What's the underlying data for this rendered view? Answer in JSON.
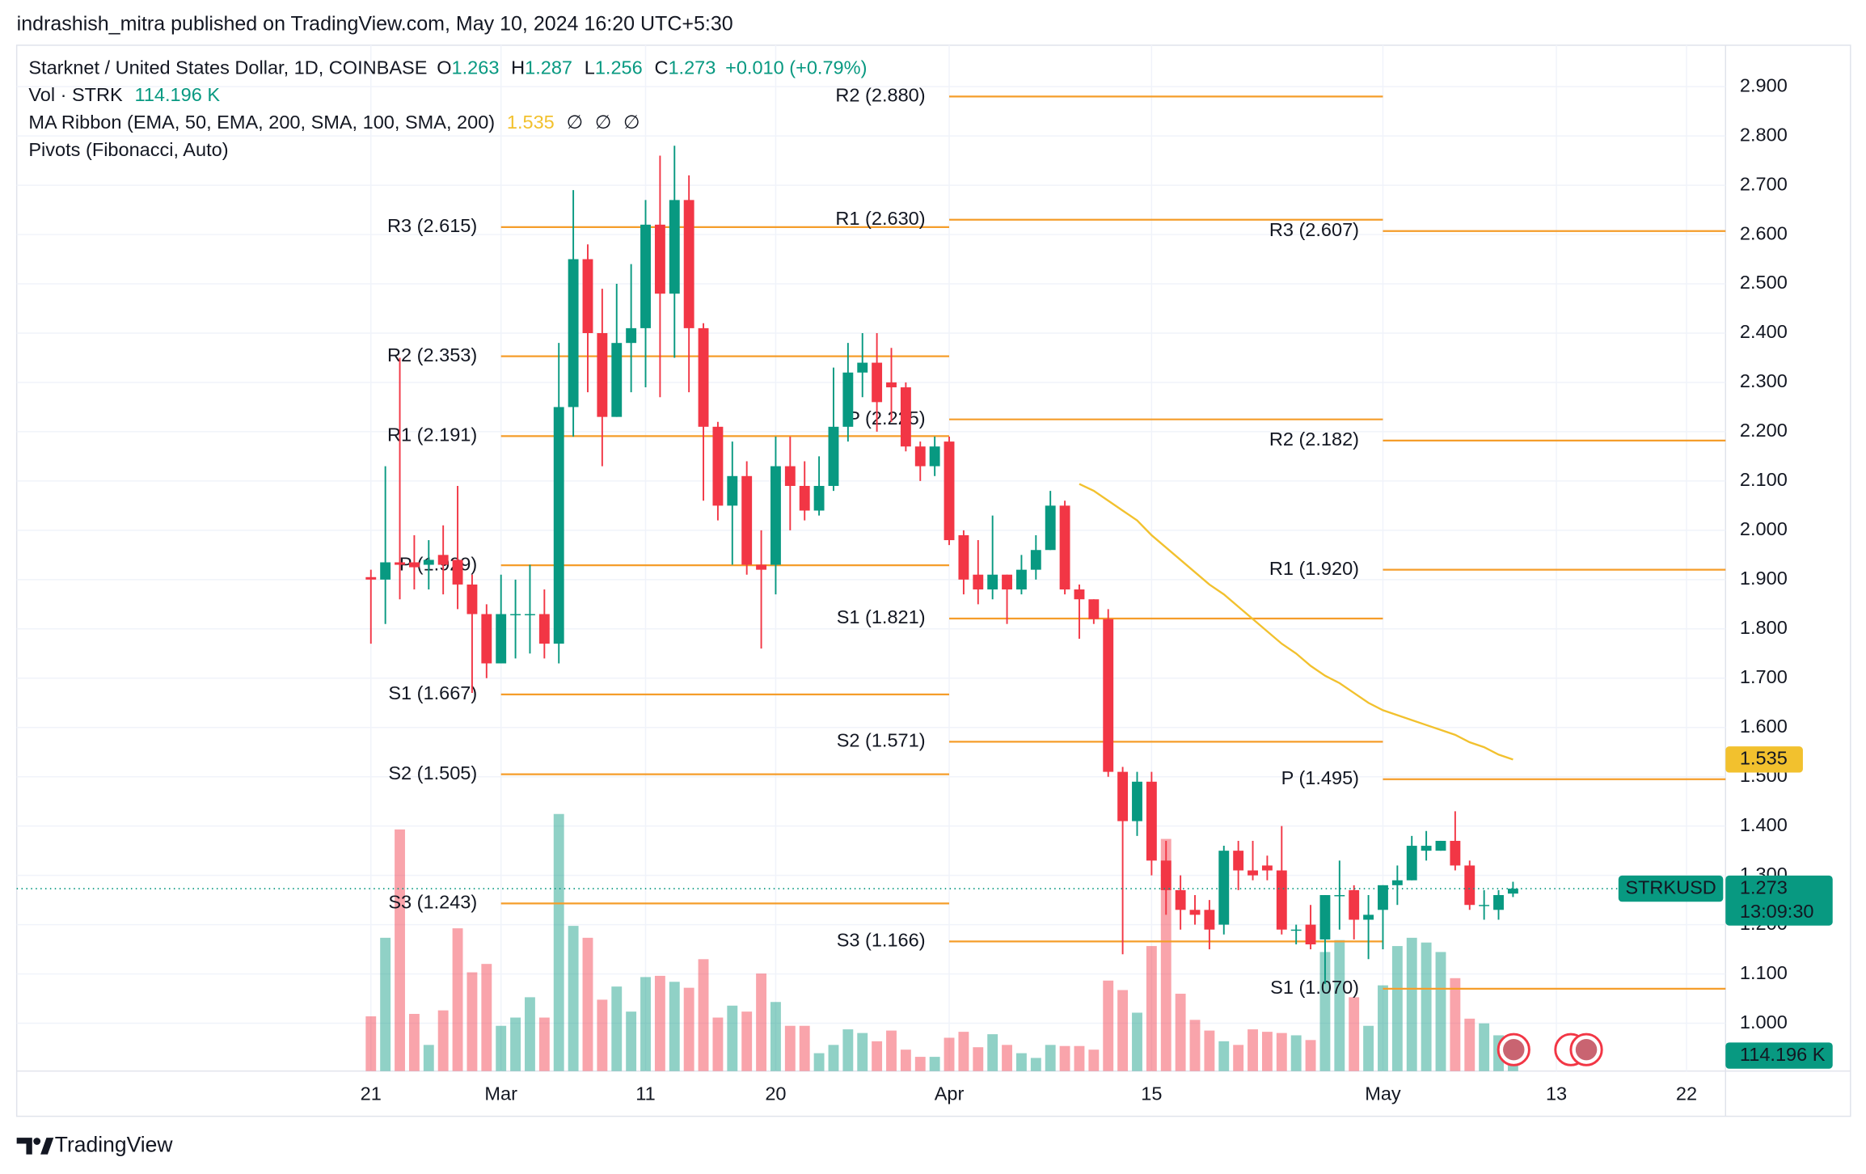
{
  "chart_data": {
    "type": "candlestick",
    "header": "indrashish_mitra published on TradingView.com, May 10, 2024 16:20 UTC+5:30",
    "title": "Starknet / United States Dollar, 1D, COINBASE",
    "ohlc_letters": [
      "O",
      "H",
      "L",
      "C"
    ],
    "change": "+0.010 (+0.79%)",
    "volume_title": "Vol · STRK",
    "volume_label": "114.196 K",
    "ma_title": "MA Ribbon (EMA, 50, EMA, 200, SMA, 100, SMA, 200)",
    "ma_na": [
      "∅",
      "∅",
      "∅"
    ],
    "pivots_title": "Pivots (Fibonacci, Auto)",
    "symbol": "STRKUSD",
    "countdown": "13:09:30",
    "brand": "TradingView",
    "colors": {
      "up": "#089981",
      "down": "#f23645",
      "up_volume": "rgba(8,153,129,0.45)",
      "down_volume": "rgba(242,54,69,0.45)",
      "ma": "#f2c12e",
      "pivot": "#f59d2a"
    },
    "open": [
      1.905,
      1.9,
      1.935,
      1.935,
      1.93,
      1.95,
      1.94,
      1.89,
      1.83,
      1.73,
      1.83,
      1.83,
      1.83,
      1.77,
      2.25,
      2.55,
      2.4,
      2.23,
      2.38,
      2.41,
      2.62,
      2.48,
      2.67,
      2.41,
      2.21,
      2.05,
      2.11,
      1.93,
      1.93,
      2.13,
      2.09,
      2.04,
      2.09,
      2.21,
      2.32,
      2.34,
      2.3,
      2.29,
      2.17,
      2.13,
      2.18,
      1.99,
      1.91,
      1.88,
      1.91,
      1.88,
      1.92,
      1.96,
      2.05,
      1.88,
      1.86,
      1.82,
      1.51,
      1.41,
      1.49,
      1.33,
      1.27,
      1.23,
      1.23,
      1.2,
      1.35,
      1.31,
      1.32,
      1.31,
      1.19,
      1.2,
      1.17,
      1.26,
      1.27,
      1.21,
      1.23,
      1.28,
      1.29,
      1.35,
      1.35,
      1.37,
      1.32,
      1.24,
      1.23,
      1.263
    ],
    "high": [
      1.92,
      2.13,
      2.35,
      1.99,
      1.98,
      2.01,
      2.09,
      1.91,
      1.85,
      1.91,
      1.9,
      1.93,
      1.88,
      2.38,
      2.69,
      2.58,
      2.49,
      2.5,
      2.54,
      2.67,
      2.76,
      2.78,
      2.72,
      2.42,
      2.22,
      2.18,
      2.14,
      2.0,
      2.19,
      2.19,
      2.14,
      2.15,
      2.33,
      2.38,
      2.4,
      2.4,
      2.37,
      2.3,
      2.18,
      2.19,
      2.19,
      2.0,
      1.98,
      2.03,
      1.91,
      1.95,
      1.99,
      2.08,
      2.06,
      1.89,
      1.86,
      1.84,
      1.52,
      1.51,
      1.51,
      1.37,
      1.3,
      1.26,
      1.25,
      1.36,
      1.37,
      1.37,
      1.34,
      1.4,
      1.2,
      1.24,
      1.26,
      1.33,
      1.28,
      1.26,
      1.28,
      1.32,
      1.38,
      1.39,
      1.37,
      1.43,
      1.33,
      1.27,
      1.27,
      1.287
    ],
    "low": [
      1.77,
      1.81,
      1.86,
      1.88,
      1.88,
      1.87,
      1.84,
      1.67,
      1.7,
      1.73,
      1.74,
      1.75,
      1.74,
      1.73,
      2.19,
      2.28,
      2.13,
      2.23,
      2.28,
      2.29,
      2.27,
      2.35,
      2.28,
      2.06,
      2.02,
      1.93,
      1.91,
      1.76,
      1.87,
      2.0,
      2.02,
      2.03,
      2.08,
      2.18,
      2.27,
      2.2,
      2.22,
      2.16,
      2.1,
      2.11,
      1.97,
      1.87,
      1.85,
      1.86,
      1.81,
      1.87,
      1.9,
      1.96,
      1.87,
      1.78,
      1.81,
      1.5,
      1.14,
      1.38,
      1.3,
      1.22,
      1.19,
      1.2,
      1.15,
      1.18,
      1.27,
      1.29,
      1.29,
      1.18,
      1.16,
      1.15,
      1.08,
      1.19,
      1.17,
      1.13,
      1.15,
      1.24,
      1.29,
      1.33,
      1.35,
      1.31,
      1.23,
      1.21,
      1.21,
      1.256
    ],
    "close": [
      1.9,
      1.935,
      1.93,
      1.925,
      1.94,
      1.93,
      1.89,
      1.83,
      1.73,
      1.83,
      1.83,
      1.83,
      1.77,
      2.25,
      2.55,
      2.4,
      2.23,
      2.38,
      2.41,
      2.62,
      2.48,
      2.67,
      2.41,
      2.21,
      2.05,
      2.11,
      1.93,
      1.92,
      2.13,
      2.09,
      2.04,
      2.09,
      2.21,
      2.32,
      2.34,
      2.26,
      2.29,
      2.17,
      2.13,
      2.17,
      1.98,
      1.9,
      1.88,
      1.91,
      1.88,
      1.92,
      1.96,
      2.05,
      1.88,
      1.86,
      1.82,
      1.51,
      1.41,
      1.49,
      1.33,
      1.27,
      1.23,
      1.22,
      1.19,
      1.35,
      1.31,
      1.3,
      1.31,
      1.19,
      1.19,
      1.16,
      1.26,
      1.26,
      1.21,
      1.22,
      1.28,
      1.29,
      1.36,
      1.36,
      1.37,
      1.32,
      1.24,
      1.24,
      1.26,
      1.273
    ],
    "volume": [
      404,
      984,
      1784,
      422,
      193,
      448,
      1054,
      729,
      791,
      334,
      395,
      545,
      395,
      1898,
      1072,
      984,
      527,
      624,
      439,
      694,
      703,
      659,
      615,
      826,
      395,
      483,
      439,
      720,
      510,
      334,
      334,
      132,
      193,
      308,
      281,
      220,
      299,
      158,
      105,
      105,
      246,
      290,
      176,
      272,
      193,
      132,
      97,
      193,
      185,
      185,
      158,
      668,
      598,
      431,
      923,
      1714,
      571,
      378,
      299,
      220,
      193,
      308,
      290,
      281,
      264,
      229,
      879,
      967,
      545,
      334,
      633,
      923,
      984,
      949,
      879,
      686,
      387,
      352,
      264,
      114.196
    ],
    "ma_values": [
      null,
      null,
      null,
      null,
      null,
      null,
      null,
      null,
      null,
      null,
      null,
      null,
      null,
      null,
      null,
      null,
      null,
      null,
      null,
      null,
      null,
      null,
      null,
      null,
      null,
      null,
      null,
      null,
      null,
      null,
      null,
      null,
      null,
      null,
      null,
      null,
      null,
      null,
      null,
      null,
      null,
      null,
      null,
      null,
      null,
      null,
      null,
      null,
      null,
      2.094,
      2.08,
      2.06,
      2.04,
      2.02,
      1.99,
      1.965,
      1.94,
      1.915,
      1.89,
      1.87,
      1.845,
      1.82,
      1.795,
      1.77,
      1.75,
      1.725,
      1.705,
      1.69,
      1.67,
      1.65,
      1.635,
      1.625,
      1.615,
      1.605,
      1.595,
      1.585,
      1.57,
      1.56,
      1.545,
      1.535
    ],
    "pivots": [
      {
        "start": 9,
        "levels": [
          {
            "value": 2.615,
            "label": "R3 (2.615)"
          },
          {
            "value": 2.353,
            "label": "R2 (2.353)"
          },
          {
            "value": 2.191,
            "label": "R1 (2.191)"
          },
          {
            "value": 1.929,
            "label": "P (1.929)"
          },
          {
            "value": 1.667,
            "label": "S1 (1.667)"
          },
          {
            "value": 1.505,
            "label": "S2 (1.505)"
          },
          {
            "value": 1.243,
            "label": "S3 (1.243)"
          }
        ]
      },
      {
        "start": 40,
        "levels": [
          {
            "value": 2.88,
            "label": "R2 (2.880)"
          },
          {
            "value": 2.63,
            "label": "R1 (2.630)"
          },
          {
            "value": 2.225,
            "label": "P (2.225)"
          },
          {
            "value": 1.821,
            "label": "S1 (1.821)"
          },
          {
            "value": 1.571,
            "label": "S2 (1.571)"
          },
          {
            "value": 1.166,
            "label": "S3 (1.166)"
          }
        ]
      },
      {
        "start": 70,
        "levels": [
          {
            "value": 2.607,
            "label": "R3 (2.607)"
          },
          {
            "value": 2.182,
            "label": "R2 (2.182)"
          },
          {
            "value": 1.92,
            "label": "R1 (1.920)"
          },
          {
            "value": 1.495,
            "label": "P (1.495)"
          },
          {
            "value": 1.07,
            "label": "S1 (1.070)"
          }
        ]
      }
    ],
    "xlim": [
      -24.5,
      93.7
    ],
    "xticks": [
      {
        "value": 0,
        "label": "21"
      },
      {
        "value": 9,
        "label": "Mar"
      },
      {
        "value": 19,
        "label": "11"
      },
      {
        "value": 28,
        "label": "20"
      },
      {
        "value": 40,
        "label": "Apr"
      },
      {
        "value": 54,
        "label": "15"
      },
      {
        "value": 70,
        "label": "May"
      },
      {
        "value": 82,
        "label": "13"
      },
      {
        "value": 91,
        "label": "22"
      }
    ],
    "ylim": [
      0.903,
      2.984
    ],
    "yticks": [
      {
        "value": 2.9,
        "label": "2.900"
      },
      {
        "value": 2.8,
        "label": "2.800"
      },
      {
        "value": 2.7,
        "label": "2.700"
      },
      {
        "value": 2.6,
        "label": "2.600"
      },
      {
        "value": 2.5,
        "label": "2.500"
      },
      {
        "value": 2.4,
        "label": "2.400"
      },
      {
        "value": 2.3,
        "label": "2.300"
      },
      {
        "value": 2.2,
        "label": "2.200"
      },
      {
        "value": 2.1,
        "label": "2.100"
      },
      {
        "value": 2.0,
        "label": "2.000"
      },
      {
        "value": 1.9,
        "label": "1.900"
      },
      {
        "value": 1.8,
        "label": "1.800"
      },
      {
        "value": 1.7,
        "label": "1.700"
      },
      {
        "value": 1.6,
        "label": "1.600"
      },
      {
        "value": 1.5,
        "label": "1.500"
      },
      {
        "value": 1.4,
        "label": "1.400"
      },
      {
        "value": 1.3,
        "label": "1.300"
      },
      {
        "value": 1.2,
        "label": "1.200"
      },
      {
        "value": 1.1,
        "label": "1.100"
      },
      {
        "value": 1.0,
        "label": "1.000"
      }
    ],
    "y2lim": [
      0,
      7574
    ],
    "grid": true
  }
}
